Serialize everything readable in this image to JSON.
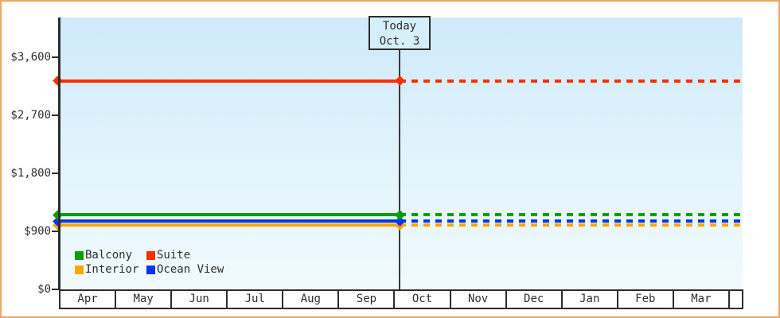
{
  "window": {
    "border_color": "#f0a55e",
    "background": "#ffffff"
  },
  "chart": {
    "today_flag": {
      "line1": "Today",
      "line2": "Oct. 3"
    },
    "y_axis": {
      "labels_top_to_bottom": [
        "$3,600",
        "$2,700",
        "$1,800",
        "$900",
        "$0"
      ]
    },
    "x_axis": {
      "months": [
        "Apr",
        "May",
        "Jun",
        "Jul",
        "Aug",
        "Sep",
        "Oct",
        "Nov",
        "Dec",
        "Jan",
        "Feb",
        "Mar"
      ]
    },
    "legend": {
      "items": [
        {
          "label": "Balcony",
          "color": "#0a9e06"
        },
        {
          "label": "Suite",
          "color": "#ff2e00"
        },
        {
          "label": "Interior",
          "color": "#ffa600"
        },
        {
          "label": "Ocean View",
          "color": "#0436f2"
        }
      ]
    }
  },
  "chart_data": {
    "type": "line",
    "title": "",
    "x": [
      "Apr",
      "May",
      "Jun",
      "Jul",
      "Aug",
      "Sep",
      "Oct",
      "Nov",
      "Dec",
      "Jan",
      "Feb",
      "Mar"
    ],
    "y_ticks": [
      0,
      900,
      1800,
      2700,
      3600
    ],
    "y_tick_labels": [
      "$0",
      "$900",
      "$1,800",
      "$2,700",
      "$3,600"
    ],
    "ylim": [
      0,
      4200
    ],
    "grid": false,
    "legend_position": "bottom-left-inside",
    "today_marker": {
      "label": "Today",
      "date": "Oct. 3",
      "month": "Oct",
      "day": 3
    },
    "series": [
      {
        "name": "Interior",
        "color": "#ffa600",
        "value": 990
      },
      {
        "name": "Ocean View",
        "color": "#0436f2",
        "value": 1050
      },
      {
        "name": "Balcony",
        "color": "#0a9e06",
        "value": 1150
      },
      {
        "name": "Suite",
        "color": "#ff2e00",
        "value": 3225
      }
    ],
    "annotation": "Flat price lines: solid from Apr to today (Oct. 3), dashed projection from today through Mar; diamond markers at series start and at today"
  }
}
